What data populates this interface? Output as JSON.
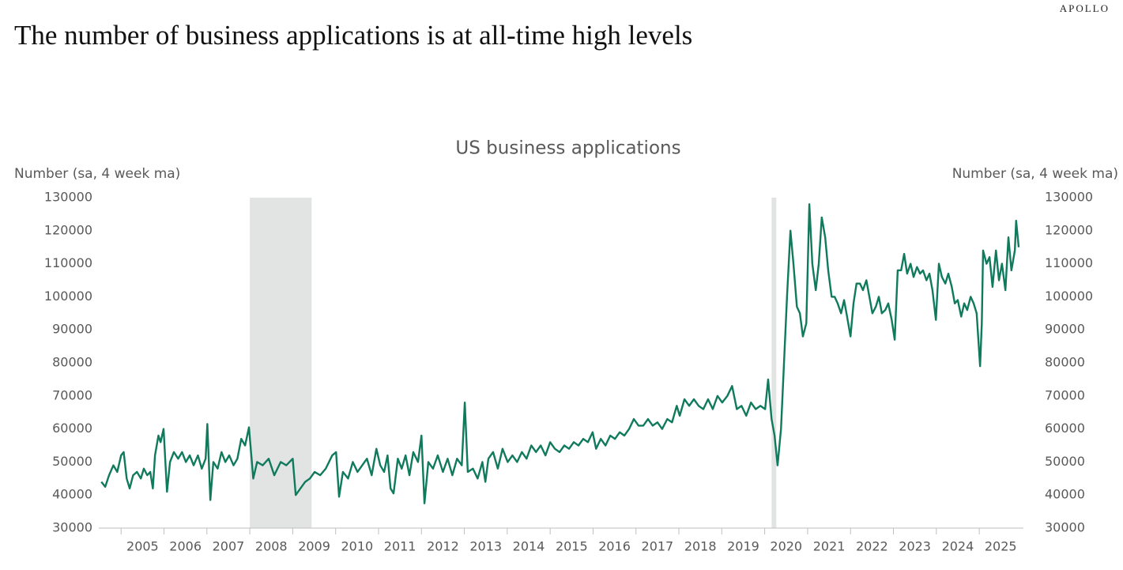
{
  "brand": "APOLLO",
  "chart_data": {
    "type": "line",
    "title": "The number of business applications is at all-time high levels",
    "chart_title": "US business applications",
    "y_label": "Number (sa, 4 week ma)",
    "y2_label": "Number (sa, 4 week ma)",
    "xlim": [
      2004.48,
      2026.03
    ],
    "xticks": [
      2005,
      2006,
      2007,
      2008,
      2009,
      2010,
      2011,
      2012,
      2013,
      2014,
      2015,
      2016,
      2017,
      2018,
      2019,
      2020,
      2021,
      2022,
      2023,
      2024,
      2025
    ],
    "ylim": [
      30000,
      130000
    ],
    "yticks": [
      30000,
      40000,
      50000,
      60000,
      70000,
      80000,
      90000,
      100000,
      110000,
      120000,
      130000
    ],
    "y2lim": [
      30000,
      130000
    ],
    "y2ticks": [
      30000,
      40000,
      50000,
      60000,
      70000,
      80000,
      90000,
      100000,
      110000,
      120000,
      130000
    ],
    "shaded_ranges": [
      [
        2008.0,
        2009.44
      ],
      [
        2020.16,
        2020.27
      ]
    ],
    "shade_color": "#e2e3e3",
    "grid": false,
    "x": [
      2004.54,
      2004.63,
      2004.72,
      2004.82,
      2004.91,
      2005.0,
      2005.06,
      2005.13,
      2005.2,
      2005.28,
      2005.37,
      2005.46,
      2005.53,
      2005.61,
      2005.68,
      2005.74,
      2005.79,
      2005.87,
      2005.92,
      2005.99,
      2006.07,
      2006.14,
      2006.23,
      2006.33,
      2006.42,
      2006.51,
      2006.6,
      2006.69,
      2006.79,
      2006.88,
      2006.97,
      2007.01,
      2007.08,
      2007.15,
      2007.25,
      2007.34,
      2007.43,
      2007.52,
      2007.62,
      2007.71,
      2007.8,
      2007.89,
      2007.98,
      2008.08,
      2008.17,
      2008.3,
      2008.44,
      2008.57,
      2008.72,
      2008.85,
      2009.0,
      2009.07,
      2009.18,
      2009.29,
      2009.4,
      2009.51,
      2009.64,
      2009.77,
      2009.92,
      2010.01,
      2010.08,
      2010.17,
      2010.29,
      2010.4,
      2010.51,
      2010.62,
      2010.73,
      2010.84,
      2010.95,
      2011.04,
      2011.13,
      2011.21,
      2011.28,
      2011.35,
      2011.45,
      2011.54,
      2011.63,
      2011.72,
      2011.81,
      2011.92,
      2012.0,
      2012.07,
      2012.16,
      2012.27,
      2012.38,
      2012.5,
      2012.61,
      2012.72,
      2012.83,
      2012.94,
      2013.01,
      2013.08,
      2013.2,
      2013.31,
      2013.42,
      2013.49,
      2013.56,
      2013.67,
      2013.78,
      2013.89,
      2014.01,
      2014.12,
      2014.23,
      2014.34,
      2014.45,
      2014.56,
      2014.67,
      2014.78,
      2014.89,
      2015.0,
      2015.11,
      2015.22,
      2015.33,
      2015.44,
      2015.55,
      2015.66,
      2015.77,
      2015.88,
      2015.99,
      2016.07,
      2016.18,
      2016.29,
      2016.4,
      2016.51,
      2016.62,
      2016.73,
      2016.84,
      2016.95,
      2017.06,
      2017.17,
      2017.28,
      2017.39,
      2017.5,
      2017.61,
      2017.73,
      2017.84,
      2017.95,
      2018.02,
      2018.13,
      2018.24,
      2018.35,
      2018.46,
      2018.57,
      2018.68,
      2018.79,
      2018.9,
      2019.01,
      2019.13,
      2019.24,
      2019.35,
      2019.46,
      2019.57,
      2019.68,
      2019.79,
      2019.9,
      2020.01,
      2020.08,
      2020.16,
      2020.23,
      2020.3,
      2020.38,
      2020.45,
      2020.52,
      2020.6,
      2020.67,
      2020.75,
      2020.82,
      2020.89,
      2020.97,
      2021.04,
      2021.11,
      2021.19,
      2021.26,
      2021.33,
      2021.41,
      2021.48,
      2021.56,
      2021.63,
      2021.7,
      2021.78,
      2021.85,
      2021.92,
      2022.0,
      2022.07,
      2022.14,
      2022.22,
      2022.29,
      2022.37,
      2022.44,
      2022.51,
      2022.59,
      2022.66,
      2022.73,
      2022.81,
      2022.88,
      2022.96,
      2023.03,
      2023.1,
      2023.18,
      2023.25,
      2023.32,
      2023.4,
      2023.47,
      2023.55,
      2023.62,
      2023.69,
      2023.77,
      2023.84,
      2023.91,
      2023.99,
      2024.06,
      2024.13,
      2024.21,
      2024.28,
      2024.36,
      2024.43,
      2024.5,
      2024.58,
      2024.65,
      2024.72,
      2024.8,
      2024.87,
      2024.94,
      2025.02,
      2025.06,
      2025.09,
      2025.17,
      2025.24,
      2025.31,
      2025.39,
      2025.46,
      2025.53,
      2025.61,
      2025.68,
      2025.75,
      2025.83,
      2025.86,
      2025.92
    ],
    "series": [
      {
        "name": "US business applications",
        "color": "#0f7a5c",
        "values": [
          44000,
          42500,
          46000,
          49000,
          47000,
          52000,
          53000,
          45000,
          42000,
          46000,
          47000,
          45000,
          48000,
          46000,
          47000,
          42000,
          52000,
          58000,
          56000,
          60000,
          41000,
          50000,
          53000,
          51000,
          53000,
          50000,
          52000,
          49000,
          52000,
          48000,
          51000,
          61500,
          38500,
          50000,
          48000,
          53000,
          50000,
          52000,
          49000,
          51000,
          57000,
          55000,
          60500,
          45000,
          50000,
          49000,
          51000,
          46000,
          50000,
          49000,
          51000,
          40000,
          42000,
          44000,
          45000,
          47000,
          46000,
          48000,
          52000,
          53000,
          39500,
          47000,
          45000,
          50000,
          47000,
          49000,
          51000,
          46000,
          54000,
          49000,
          47000,
          52000,
          42000,
          40500,
          51000,
          48000,
          52000,
          46000,
          53000,
          50000,
          58000,
          37500,
          50000,
          48000,
          52000,
          47000,
          51000,
          46000,
          51000,
          49000,
          68000,
          47000,
          48000,
          45000,
          50000,
          44000,
          51000,
          53000,
          48000,
          54000,
          50000,
          52000,
          50000,
          53000,
          51000,
          55000,
          53000,
          55000,
          52000,
          56000,
          54000,
          53000,
          55000,
          54000,
          56000,
          55000,
          57000,
          56000,
          59000,
          54000,
          57000,
          55000,
          58000,
          57000,
          59000,
          58000,
          60000,
          63000,
          61000,
          61000,
          63000,
          61000,
          62000,
          60000,
          63000,
          62000,
          67000,
          64000,
          69000,
          67000,
          69000,
          67000,
          66000,
          69000,
          66000,
          70000,
          68000,
          70000,
          73000,
          66000,
          67000,
          64000,
          68000,
          66000,
          67000,
          66000,
          75000,
          63000,
          58000,
          49000,
          60000,
          80000,
          100000,
          120000,
          110000,
          97000,
          95000,
          88000,
          92000,
          128000,
          110000,
          102000,
          110000,
          124000,
          118000,
          108000,
          100000,
          100000,
          98000,
          95000,
          99000,
          94000,
          88000,
          98000,
          104000,
          104000,
          102000,
          105000,
          100000,
          95000,
          97000,
          100000,
          95000,
          96000,
          98000,
          93000,
          87000,
          108000,
          108000,
          113000,
          107000,
          110000,
          106000,
          109000,
          107000,
          108000,
          105000,
          107000,
          102000,
          93000,
          110000,
          106000,
          104000,
          107000,
          103000,
          98000,
          99000,
          94000,
          98000,
          96000,
          100000,
          98000,
          95000,
          79000,
          92000,
          114000,
          110000,
          112000,
          103000,
          114000,
          105000,
          110000,
          102000,
          118000,
          108000,
          114000,
          123000,
          115000
        ]
      }
    ]
  }
}
